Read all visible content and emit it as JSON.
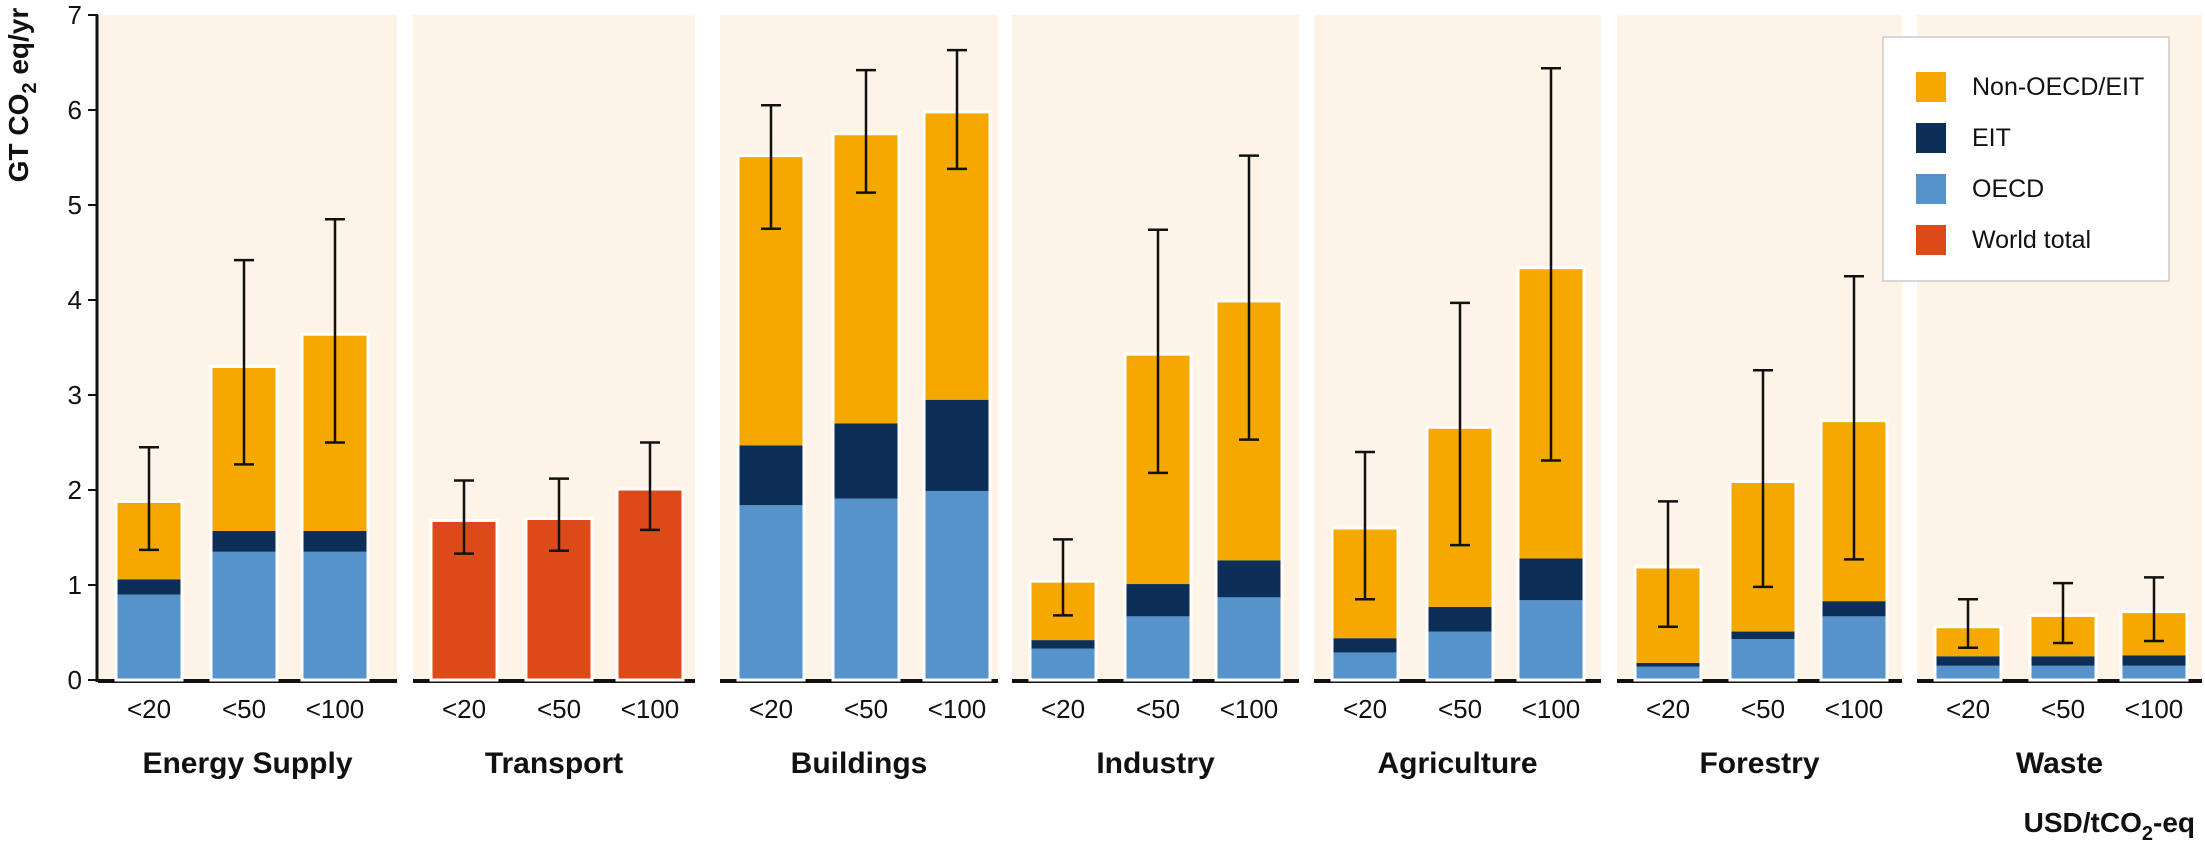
{
  "chart_data": {
    "type": "bar",
    "stacked": true,
    "ylabel": "GT CO2 eq/yr",
    "xlabel": "USD/tCO2-eq",
    "ylim": [
      0,
      7
    ],
    "yticks": [
      0,
      1,
      2,
      3,
      4,
      5,
      6,
      7
    ],
    "categories": [
      "<20",
      "<50",
      "<100"
    ],
    "legend": {
      "placement": "top-right",
      "entries": [
        {
          "key": "non_oecd",
          "label": "Non-OECD/EIT",
          "color": "#F5A800"
        },
        {
          "key": "eit",
          "label": "EIT",
          "color": "#0D2E57"
        },
        {
          "key": "oecd",
          "label": "OECD",
          "color": "#5593CA"
        },
        {
          "key": "world",
          "label": "World total",
          "color": "#DD4A19"
        }
      ]
    },
    "panel_background": "#FDF3E6",
    "sectors": [
      {
        "name": "Energy Supply",
        "bars": [
          {
            "category": "<20",
            "oecd": 0.9,
            "eit": 0.16,
            "non_oecd": 0.82,
            "total": 1.88,
            "error": [
              1.37,
              2.45
            ]
          },
          {
            "category": "<50",
            "oecd": 1.35,
            "eit": 0.22,
            "non_oecd": 1.73,
            "total": 3.3,
            "error": [
              2.27,
              4.42
            ]
          },
          {
            "category": "<100",
            "oecd": 1.35,
            "eit": 0.22,
            "non_oecd": 2.07,
            "total": 3.64,
            "error": [
              2.5,
              4.85
            ]
          }
        ]
      },
      {
        "name": "Transport",
        "bars": [
          {
            "category": "<20",
            "world": 1.68,
            "total": 1.68,
            "error": [
              1.33,
              2.1
            ]
          },
          {
            "category": "<50",
            "world": 1.7,
            "total": 1.7,
            "error": [
              1.36,
              2.12
            ]
          },
          {
            "category": "<100",
            "world": 2.01,
            "total": 2.01,
            "error": [
              1.58,
              2.5
            ]
          }
        ]
      },
      {
        "name": "Buildings",
        "bars": [
          {
            "category": "<20",
            "oecd": 1.84,
            "eit": 0.63,
            "non_oecd": 3.05,
            "total": 5.52,
            "error": [
              4.75,
              6.05
            ]
          },
          {
            "category": "<50",
            "oecd": 1.91,
            "eit": 0.79,
            "non_oecd": 3.05,
            "total": 5.75,
            "error": [
              5.13,
              6.42
            ]
          },
          {
            "category": "<100",
            "oecd": 1.99,
            "eit": 0.96,
            "non_oecd": 3.03,
            "total": 5.98,
            "error": [
              5.38,
              6.63
            ]
          }
        ]
      },
      {
        "name": "Industry",
        "bars": [
          {
            "category": "<20",
            "oecd": 0.33,
            "eit": 0.09,
            "non_oecd": 0.62,
            "total": 1.04,
            "error": [
              0.68,
              1.48
            ]
          },
          {
            "category": "<50",
            "oecd": 0.67,
            "eit": 0.34,
            "non_oecd": 2.42,
            "total": 3.43,
            "error": [
              2.18,
              4.74
            ]
          },
          {
            "category": "<100",
            "oecd": 0.87,
            "eit": 0.39,
            "non_oecd": 2.73,
            "total": 3.99,
            "error": [
              2.53,
              5.52
            ]
          }
        ]
      },
      {
        "name": "Agriculture",
        "bars": [
          {
            "category": "<20",
            "oecd": 0.29,
            "eit": 0.15,
            "non_oecd": 1.16,
            "total": 1.6,
            "error": [
              0.85,
              2.4
            ]
          },
          {
            "category": "<50",
            "oecd": 0.51,
            "eit": 0.26,
            "non_oecd": 1.89,
            "total": 2.66,
            "error": [
              1.42,
              3.97
            ]
          },
          {
            "category": "<100",
            "oecd": 0.84,
            "eit": 0.44,
            "non_oecd": 3.06,
            "total": 4.34,
            "error": [
              2.31,
              6.44
            ]
          }
        ]
      },
      {
        "name": "Forestry",
        "bars": [
          {
            "category": "<20",
            "oecd": 0.14,
            "eit": 0.04,
            "non_oecd": 1.01,
            "total": 1.19,
            "error": [
              0.56,
              1.88
            ]
          },
          {
            "category": "<50",
            "oecd": 0.43,
            "eit": 0.08,
            "non_oecd": 1.58,
            "total": 2.09,
            "error": [
              0.98,
              3.26
            ]
          },
          {
            "category": "<100",
            "oecd": 0.67,
            "eit": 0.16,
            "non_oecd": 1.9,
            "total": 2.73,
            "error": [
              1.27,
              4.25
            ]
          }
        ]
      },
      {
        "name": "Waste",
        "bars": [
          {
            "category": "<20",
            "oecd": 0.15,
            "eit": 0.1,
            "non_oecd": 0.31,
            "total": 0.56,
            "error": [
              0.34,
              0.85
            ]
          },
          {
            "category": "<50",
            "oecd": 0.15,
            "eit": 0.1,
            "non_oecd": 0.43,
            "total": 0.68,
            "error": [
              0.39,
              1.02
            ]
          },
          {
            "category": "<100",
            "oecd": 0.15,
            "eit": 0.11,
            "non_oecd": 0.46,
            "total": 0.72,
            "error": [
              0.41,
              1.08
            ]
          }
        ]
      }
    ]
  }
}
